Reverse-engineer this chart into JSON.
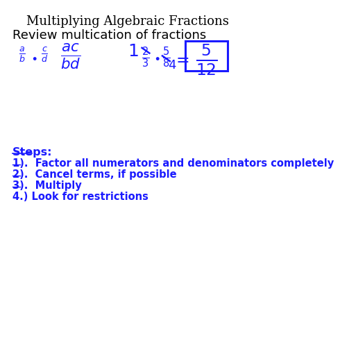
{
  "title": "Multiplying Algebraic Fractions",
  "title_fontsize": 13,
  "title_color": "#000000",
  "bg_color": "#ffffff",
  "blue_color": "#1a1aff",
  "review_text": "Review multication of fractions",
  "review_fontsize": 13,
  "steps_header": "Steps:",
  "step1": "1).  Factor all numerators and denominators completely",
  "step2": "2).  Cancel terms, if possible",
  "step3": "3).  Multiply",
  "step4": "4.) Look for restrictions",
  "steps_fontsize": 10.5
}
